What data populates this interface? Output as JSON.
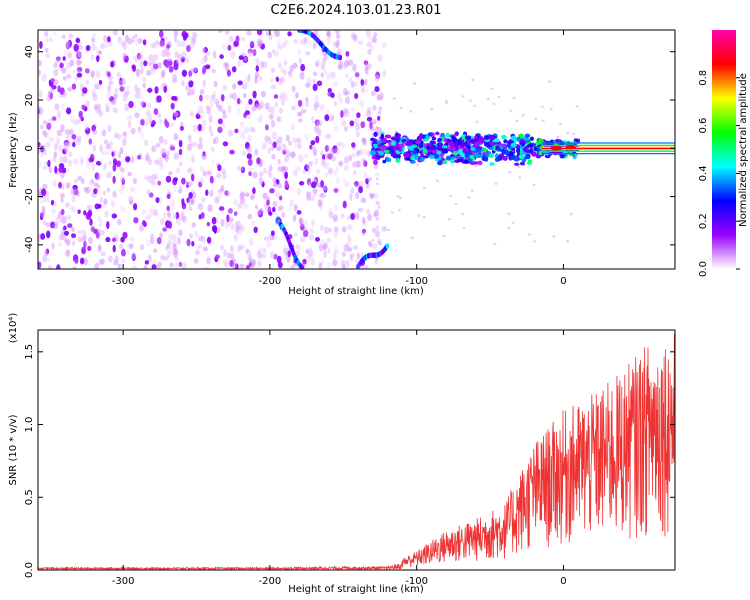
{
  "title": "C2E6.2024.103.01.23.R01",
  "chart_data": [
    {
      "type": "heatmap",
      "xlabel": "Height of straight line (km)",
      "ylabel": "Frequency (Hz)",
      "xlim": [
        -358,
        76
      ],
      "ylim": [
        -50,
        49
      ],
      "x_ticks": [
        -300,
        -200,
        -100,
        0
      ],
      "y_ticks": [
        -40,
        -20,
        0,
        20,
        40
      ],
      "x_tick_labels": [
        "-300",
        "-200",
        "-100",
        "0"
      ],
      "y_tick_labels": [
        "-40",
        "-20",
        "0",
        "20",
        "40"
      ],
      "colorbar": {
        "label": "Normalized spectral amplitude",
        "range": [
          0,
          1
        ],
        "ticks": [
          0.0,
          0.2,
          0.4,
          0.6,
          0.8
        ],
        "tick_labels": [
          "0.0",
          "0.2",
          "0.4",
          "0.6",
          "0.8"
        ],
        "colors": [
          "#ffffff",
          "#9900ff",
          "#0000ff",
          "#00ffff",
          "#00ff00",
          "#ffff00",
          "#ff0000",
          "#ff00aa"
        ]
      },
      "features": {
        "noise_region_x": [
          -358,
          -130
        ],
        "carrier_band_x": [
          -130,
          76
        ],
        "carrier_freq": 0,
        "carrier_width_hz": [
          -4,
          4
        ],
        "strong_line_x": [
          -15,
          76
        ],
        "meteor_tracks": [
          {
            "x": [
              -195,
              -178
            ],
            "y": [
              -30,
              -49
            ]
          },
          {
            "x": [
              -180,
              -152
            ],
            "y": [
              49,
              38
            ]
          },
          {
            "x": [
              -140,
              -120
            ],
            "y": [
              -49,
              -40
            ]
          }
        ]
      }
    },
    {
      "type": "line",
      "xlabel": "Height of straight line (km)",
      "ylabel": "SNR (10 * v/v)",
      "y_multiplier": "(x10⁴)",
      "xlim": [
        -358,
        76
      ],
      "ylim": [
        0,
        1.65
      ],
      "x_ticks": [
        -300,
        -200,
        -100,
        0
      ],
      "y_ticks": [
        0.0,
        0.5,
        1.0,
        1.5
      ],
      "x_tick_labels": [
        "-300",
        "-200",
        "-100",
        "0"
      ],
      "y_tick_labels": [
        "0.0",
        "0.5",
        "1.0",
        "1.5"
      ],
      "series": [
        {
          "color": "#ee3333",
          "envelope_x": [
            -358,
            -200,
            -150,
            -120,
            -100,
            -80,
            -60,
            -40,
            -20,
            0,
            20,
            40,
            60,
            76
          ],
          "envelope_y": [
            0.02,
            0.02,
            0.03,
            0.03,
            0.12,
            0.25,
            0.32,
            0.42,
            0.8,
            1.0,
            1.1,
            1.25,
            1.45,
            1.5
          ]
        }
      ]
    }
  ]
}
